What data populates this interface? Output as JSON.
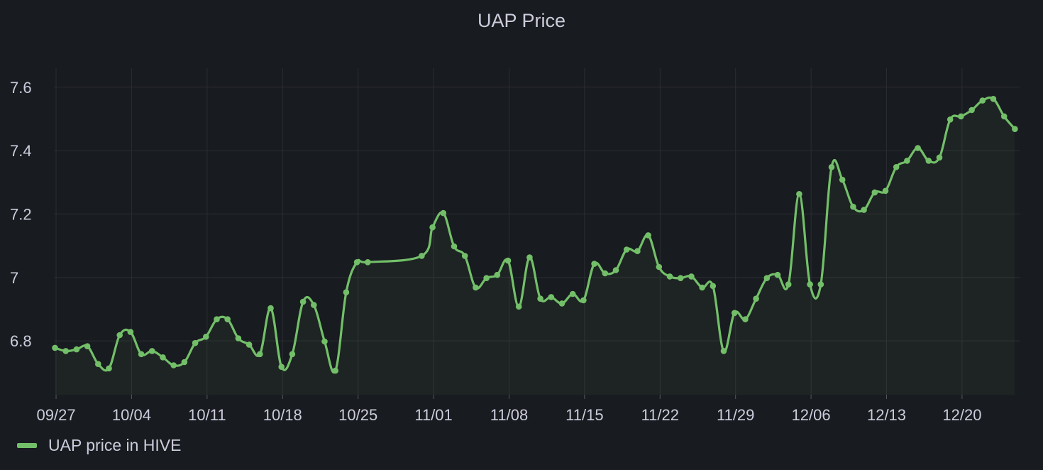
{
  "panel": {
    "title": "UAP Price"
  },
  "colors": {
    "series": "#73bf69",
    "grid": "#2a2d33",
    "text": "#ccccdc",
    "background": "#181b1f"
  },
  "chart_data": {
    "type": "line",
    "title": "UAP Price",
    "xlabel": "",
    "ylabel": "",
    "ylim": [
      6.63,
      7.66
    ],
    "yticks": [
      {
        "value": 6.8,
        "label": "6.8"
      },
      {
        "value": 7.0,
        "label": "7"
      },
      {
        "value": 7.2,
        "label": "7.2"
      },
      {
        "value": 7.4,
        "label": "7.4"
      },
      {
        "value": 7.6,
        "label": "7.6"
      }
    ],
    "xlim": [
      -0.2,
      89.4
    ],
    "xticks": [
      {
        "day": 0,
        "label": "09/27"
      },
      {
        "day": 7,
        "label": "10/04"
      },
      {
        "day": 14,
        "label": "10/11"
      },
      {
        "day": 21,
        "label": "10/18"
      },
      {
        "day": 28,
        "label": "10/25"
      },
      {
        "day": 35,
        "label": "11/01"
      },
      {
        "day": 42,
        "label": "11/08"
      },
      {
        "day": 49,
        "label": "11/15"
      },
      {
        "day": 56,
        "label": "11/22"
      },
      {
        "day": 63,
        "label": "11/29"
      },
      {
        "day": 70,
        "label": "12/06"
      },
      {
        "day": 77,
        "label": "12/13"
      },
      {
        "day": 84,
        "label": "12/20"
      }
    ],
    "legend": {
      "position": "bottom-left",
      "entries": [
        "UAP price in HIVE"
      ]
    },
    "series": [
      {
        "name": "UAP price in HIVE",
        "x": [
          -0.1,
          0.9,
          1.9,
          2.9,
          3.9,
          4.9,
          5.9,
          6.9,
          7.9,
          8.9,
          9.9,
          10.9,
          11.9,
          12.9,
          13.9,
          14.9,
          15.9,
          16.9,
          17.9,
          18.9,
          19.9,
          20.9,
          21.9,
          22.9,
          23.9,
          24.9,
          25.9,
          26.9,
          27.9,
          28.9,
          33.9,
          34.9,
          35.9,
          36.9,
          37.9,
          38.9,
          39.9,
          40.9,
          41.9,
          42.9,
          43.9,
          44.9,
          45.9,
          46.9,
          47.9,
          48.9,
          49.9,
          50.9,
          51.9,
          52.9,
          53.9,
          54.9,
          55.9,
          56.9,
          57.9,
          58.9,
          59.9,
          60.9,
          61.9,
          62.9,
          63.9,
          64.9,
          65.9,
          66.9,
          67.9,
          68.9,
          69.9,
          70.9,
          71.9,
          72.9,
          73.9,
          74.9,
          75.9,
          76.9,
          77.9,
          78.9,
          79.9,
          80.9,
          81.9,
          82.9,
          83.9,
          84.9,
          85.9,
          86.9,
          87.9,
          88.9
        ],
        "values": [
          6.778,
          6.768,
          6.773,
          6.783,
          6.727,
          6.713,
          6.818,
          6.828,
          6.758,
          6.768,
          6.748,
          6.723,
          6.733,
          6.793,
          6.813,
          6.868,
          6.868,
          6.808,
          6.788,
          6.758,
          6.903,
          6.718,
          6.758,
          6.923,
          6.913,
          6.798,
          6.706,
          6.953,
          7.048,
          7.048,
          7.068,
          7.158,
          7.203,
          7.098,
          7.068,
          6.968,
          6.998,
          7.008,
          7.053,
          6.908,
          7.063,
          6.933,
          6.938,
          6.918,
          6.948,
          6.928,
          7.043,
          7.013,
          7.023,
          7.088,
          7.083,
          7.133,
          7.033,
          7.003,
          6.998,
          7.003,
          6.968,
          6.973,
          6.768,
          6.888,
          6.868,
          6.933,
          6.998,
          7.008,
          6.978,
          7.263,
          6.978,
          6.978,
          7.348,
          7.308,
          7.223,
          7.213,
          7.268,
          7.273,
          7.348,
          7.368,
          7.408,
          7.368,
          7.378,
          7.498,
          7.508,
          7.528,
          7.558,
          7.563,
          7.508,
          7.468
        ]
      }
    ]
  }
}
